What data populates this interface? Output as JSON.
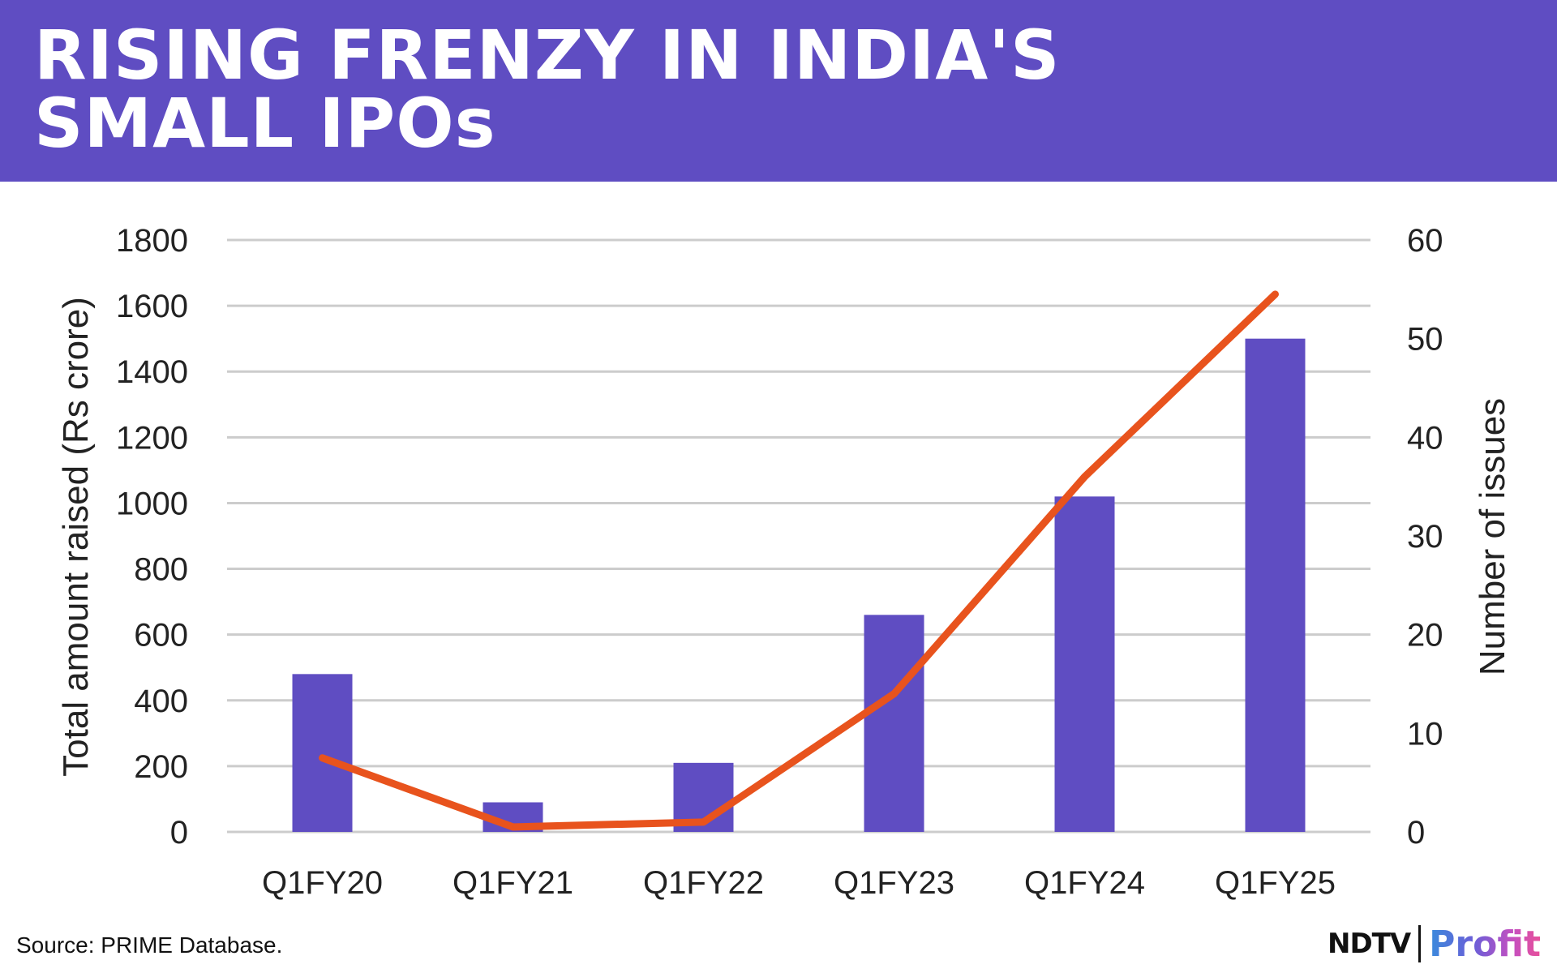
{
  "header": {
    "title_line1": "RISING FRENZY IN INDIA'S",
    "title_line2": "SMALL IPOs",
    "background_color": "#5f4dc2"
  },
  "chart_data": {
    "type": "bar",
    "categories": [
      "Q1FY20",
      "Q1FY21",
      "Q1FY22",
      "Q1FY23",
      "Q1FY24",
      "Q1FY25"
    ],
    "series": [
      {
        "type": "bar",
        "axis": "left",
        "color": "#5f4dc2",
        "values": [
          480,
          90,
          210,
          660,
          1020,
          1500
        ]
      },
      {
        "type": "line",
        "axis": "right",
        "color": "#e8531d",
        "values": [
          7.5,
          0.5,
          1,
          14,
          36,
          54.5
        ]
      }
    ],
    "ylabel_left": "Total amount raised (Rs crore)",
    "ylabel_right": "Number of issues",
    "ylim_left": [
      0,
      1800
    ],
    "ylim_right": [
      0,
      60
    ],
    "yticks_left": [
      "0",
      "200",
      "400",
      "600",
      "800",
      "1000",
      "1200",
      "1400",
      "1600",
      "1800"
    ],
    "yticks_right": [
      "0",
      "10",
      "20",
      "30",
      "40",
      "50",
      "60"
    ],
    "grid": true
  },
  "footer": {
    "source": "Source: PRIME Database.",
    "logo_ndtv": "NDTV",
    "logo_profit": "Profit"
  }
}
